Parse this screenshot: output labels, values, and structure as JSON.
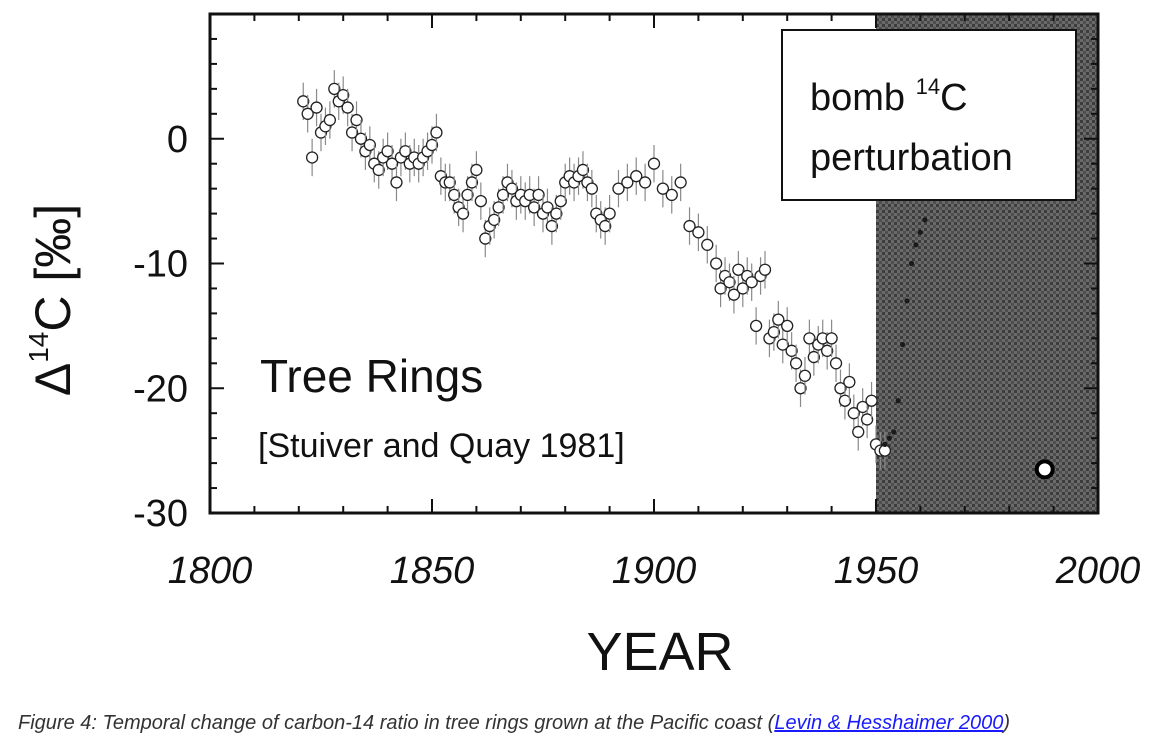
{
  "chart_data": {
    "type": "scatter",
    "xlabel": "YEAR",
    "ylabel_prefix": "Δ",
    "ylabel_sup": "14",
    "ylabel_suffix": "C [‰]",
    "xlim": [
      1800,
      2000
    ],
    "ylim": [
      -30,
      10
    ],
    "x_ticks": [
      1800,
      1850,
      1900,
      1950,
      2000
    ],
    "x_tick_labels": [
      "1800",
      "1850",
      "1900",
      "1950",
      "2000"
    ],
    "y_ticks": [
      0,
      -10,
      -20,
      -30
    ],
    "y_tick_labels": [
      "0",
      "-10",
      "-20",
      "-30"
    ],
    "annotation_title": "Tree Rings",
    "annotation_source": "[Stuiver and Quay 1981]",
    "shaded_region": {
      "x_start": 1950,
      "x_end": 2000,
      "color": "#5a5a5a"
    },
    "bomb_box_line1_a": "bomb ",
    "bomb_box_line1_sup": "14",
    "bomb_box_line1_b": "C",
    "bomb_box_line2": "perturbation",
    "series": [
      {
        "marker": "open-circle",
        "error_bar": 1.5,
        "x": [
          1821,
          1822,
          1823,
          1824,
          1825,
          1826,
          1827,
          1828,
          1829,
          1830,
          1831,
          1832,
          1833,
          1834,
          1835,
          1836,
          1837,
          1838,
          1839,
          1840,
          1841,
          1842,
          1843,
          1844,
          1845,
          1846,
          1847,
          1848,
          1849,
          1850,
          1851,
          1852,
          1853,
          1854,
          1855,
          1856,
          1857,
          1858,
          1859,
          1860,
          1861,
          1862,
          1863,
          1864,
          1865,
          1866,
          1867,
          1868,
          1869,
          1870,
          1871,
          1872,
          1873,
          1874,
          1875,
          1876,
          1877,
          1878,
          1879,
          1880,
          1881,
          1882,
          1883,
          1884,
          1885,
          1886,
          1887,
          1888,
          1889,
          1890,
          1892,
          1894,
          1896,
          1898,
          1900,
          1902,
          1904,
          1906,
          1908,
          1910,
          1912,
          1914,
          1915,
          1916,
          1917,
          1918,
          1919,
          1920,
          1921,
          1922,
          1923,
          1924,
          1925,
          1926,
          1927,
          1928,
          1929,
          1930,
          1931,
          1932,
          1933,
          1934,
          1935,
          1936,
          1937,
          1938,
          1939,
          1940,
          1941,
          1942,
          1943,
          1944,
          1945,
          1946,
          1947,
          1948,
          1949,
          1950,
          1951,
          1952
        ],
        "y": [
          3,
          2,
          -1.5,
          2.5,
          0.5,
          1,
          1.5,
          4,
          3,
          3.5,
          2.5,
          0.5,
          1.5,
          0,
          -1,
          -0.5,
          -2,
          -2.5,
          -1.5,
          -1,
          -2,
          -3.5,
          -1.5,
          -1,
          -2,
          -1.5,
          -2,
          -1.5,
          -1,
          -0.5,
          0.5,
          -3,
          -3.5,
          -3.5,
          -4.5,
          -5.5,
          -6,
          -4.5,
          -3.5,
          -2.5,
          -5,
          -8,
          -7,
          -6.5,
          -5.5,
          -4.5,
          -3.5,
          -4,
          -5,
          -4.5,
          -5,
          -4.5,
          -5.5,
          -4.5,
          -6,
          -5.5,
          -7,
          -6,
          -5,
          -3.5,
          -3,
          -3.5,
          -3,
          -2.5,
          -3.5,
          -4,
          -6,
          -6.5,
          -7,
          -6,
          -4,
          -3.5,
          -3,
          -3.5,
          -2,
          -4,
          -4.5,
          -3.5,
          -7,
          -7.5,
          -8.5,
          -10,
          -12,
          -11,
          -11.5,
          -12.5,
          -10.5,
          -12,
          -11,
          -11.5,
          -15,
          -11,
          -10.5,
          -16,
          -15.5,
          -14.5,
          -16.5,
          -15,
          -17,
          -18,
          -20,
          -19,
          -16,
          -17.5,
          -16.5,
          -16,
          -17,
          -16,
          -18,
          -20,
          -21,
          -19.5,
          -22,
          -23.5,
          -21.5,
          -22.5,
          -21,
          -24.5,
          -25,
          -25
        ]
      },
      {
        "marker": "filled-dot",
        "x": [
          1952,
          1953,
          1954,
          1955,
          1956,
          1957,
          1958,
          1959,
          1960,
          1961
        ],
        "y": [
          -24.5,
          -24,
          -23.5,
          -21,
          -16.5,
          -13,
          -10,
          -8.5,
          -7.5,
          -6.5
        ]
      },
      {
        "marker": "open-circle-bold",
        "x": [
          1988
        ],
        "y": [
          -26.5
        ]
      }
    ]
  },
  "caption": {
    "text": "Figure 4: Temporal change of carbon-14 ratio in tree rings grown at the Pacific coast (",
    "link": "Levin & Hesshaimer 2000",
    "close": ")"
  }
}
